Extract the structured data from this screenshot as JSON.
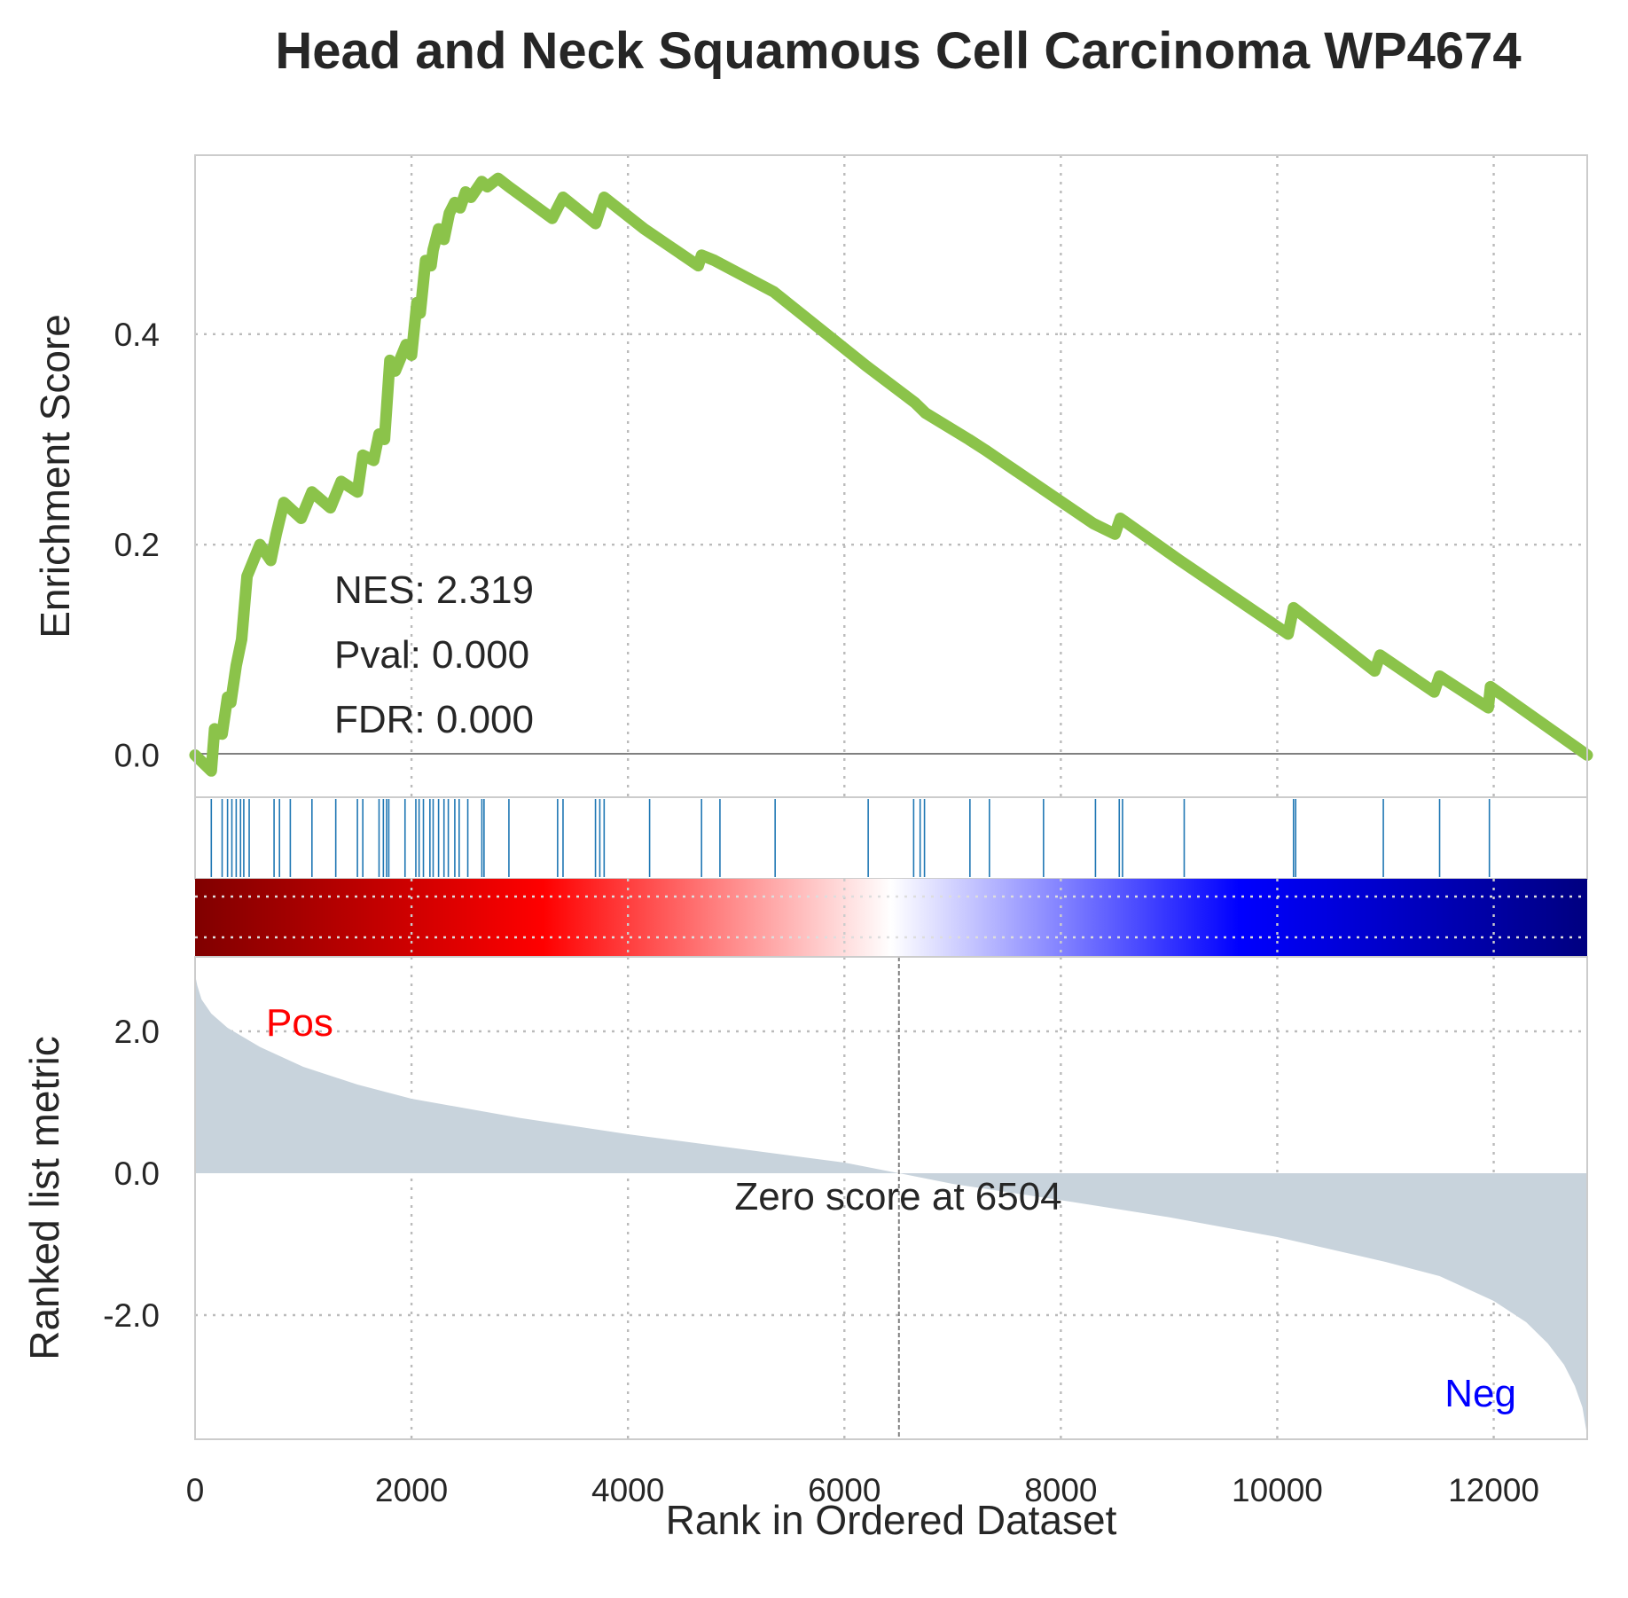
{
  "chart_data": {
    "type": "line",
    "title": "Head and Neck Squamous Cell Carcinoma WP4674",
    "xlabel": "Rank in Ordered Dataset",
    "xlim": [
      0,
      12864
    ],
    "x_ticks": [
      "0",
      "2000",
      "4000",
      "6000",
      "8000",
      "10000",
      "12000"
    ],
    "panels": {
      "enrichment": {
        "ylabel": "Enrichment Score",
        "ylim": [
          -0.04,
          0.57
        ],
        "y_ticks": [
          "0.0",
          "0.2",
          "0.4"
        ],
        "line_color": "#8bc34a",
        "series": [
          {
            "x": [
              0,
              150,
              180,
              250,
              300,
              330,
              380,
              430,
              480,
              600,
              700,
              750,
              820,
              980,
              1080,
              1250,
              1350,
              1500,
              1550,
              1650,
              1700,
              1750,
              1800,
              1850,
              1950,
              2000,
              2050,
              2080,
              2130,
              2180,
              2200,
              2250,
              2300,
              2350,
              2400,
              2450,
              2500,
              2550,
              2650,
              2700,
              2800,
              2900,
              3300,
              3400,
              3700,
              3780,
              4150,
              4650,
              4680,
              4800,
              5350,
              6200,
              6650,
              6750,
              7150,
              7300,
              7800,
              8300,
              8500,
              8550,
              9100,
              10100,
              10150,
              10900,
              10950,
              11450,
              11500,
              11950,
              11970,
              12864
            ],
            "y": [
              0,
              -0.015,
              0.025,
              0.02,
              0.055,
              0.05,
              0.085,
              0.11,
              0.17,
              0.2,
              0.185,
              0.21,
              0.24,
              0.225,
              0.25,
              0.235,
              0.26,
              0.25,
              0.285,
              0.28,
              0.305,
              0.3,
              0.375,
              0.365,
              0.39,
              0.38,
              0.43,
              0.42,
              0.47,
              0.465,
              0.48,
              0.5,
              0.49,
              0.515,
              0.525,
              0.52,
              0.535,
              0.53,
              0.545,
              0.54,
              0.548,
              0.54,
              0.51,
              0.53,
              0.505,
              0.53,
              0.5,
              0.465,
              0.475,
              0.47,
              0.44,
              0.37,
              0.335,
              0.325,
              0.3,
              0.29,
              0.255,
              0.22,
              0.21,
              0.225,
              0.185,
              0.115,
              0.14,
              0.08,
              0.095,
              0.06,
              0.075,
              0.045,
              0.065,
              0
            ]
          }
        ],
        "annotations": [
          "NES: 2.319",
          "Pval: 0.000",
          "FDR: 0.000"
        ]
      },
      "hits": {
        "color": "#1f77b4",
        "positions": [
          150,
          250,
          300,
          340,
          380,
          420,
          450,
          500,
          730,
          780,
          880,
          1080,
          1300,
          1500,
          1550,
          1700,
          1740,
          1770,
          1790,
          1940,
          2040,
          2070,
          2110,
          2170,
          2200,
          2250,
          2300,
          2340,
          2400,
          2440,
          2520,
          2650,
          2670,
          2900,
          3350,
          3400,
          3700,
          3740,
          3780,
          4200,
          4680,
          4850,
          5360,
          6220,
          6640,
          6700,
          6740,
          7160,
          7340,
          7840,
          8320,
          8540,
          8570,
          9140,
          10150,
          10170,
          10980,
          11500,
          11960
        ]
      },
      "heatmap": {
        "colormap": "seismic",
        "colors": [
          "#800000",
          "#ff0000",
          "#ffffff",
          "#0000ff",
          "#000080"
        ]
      },
      "ranked_metric": {
        "ylabel": "Ranked list metric",
        "ylim": [
          -3.75,
          3.05
        ],
        "y_ticks": [
          "2.0",
          "0.0",
          "-2.0"
        ],
        "fill_color": "#c8d3dc",
        "x": [
          0,
          20,
          60,
          150,
          300,
          600,
          1000,
          1500,
          2000,
          3000,
          4000,
          5000,
          6000,
          6504,
          7000,
          8000,
          9000,
          10000,
          11000,
          11500,
          12000,
          12300,
          12500,
          12650,
          12750,
          12820,
          12864
        ],
        "y": [
          2.8,
          2.65,
          2.45,
          2.25,
          2.05,
          1.78,
          1.5,
          1.25,
          1.05,
          0.78,
          0.55,
          0.35,
          0.15,
          0,
          -0.15,
          -0.38,
          -0.62,
          -0.9,
          -1.25,
          -1.45,
          -1.8,
          -2.1,
          -2.4,
          -2.7,
          -3.0,
          -3.3,
          -3.7
        ],
        "zero_score_label": "Zero score at 6504",
        "zero_score_x": 6504,
        "pos_label": "Pos",
        "neg_label": "Neg"
      }
    }
  }
}
